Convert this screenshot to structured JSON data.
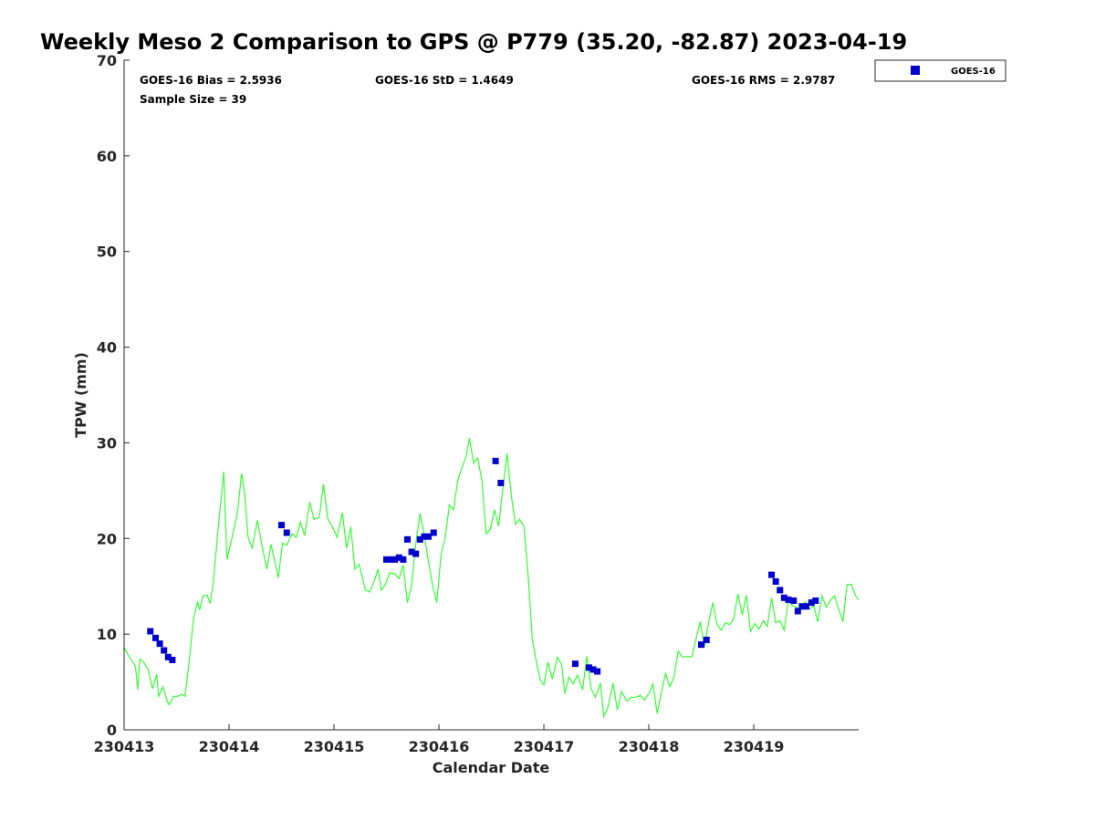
{
  "chart_data": {
    "type": "scatter",
    "title": "Weekly Meso 2 Comparison to GPS @ P779 (35.20, -82.87) 2023-04-19",
    "xlabel": "Calendar Date",
    "ylabel": "TPW (mm)",
    "xlim": [
      0,
      7
    ],
    "ylim": [
      0,
      70
    ],
    "x_ticks": [
      {
        "value": 0,
        "label": "230413"
      },
      {
        "value": 1,
        "label": "230414"
      },
      {
        "value": 2,
        "label": "230415"
      },
      {
        "value": 3,
        "label": "230416"
      },
      {
        "value": 4,
        "label": "230417"
      },
      {
        "value": 5,
        "label": "230418"
      },
      {
        "value": 6,
        "label": "230419"
      }
    ],
    "y_ticks": [
      0,
      10,
      20,
      30,
      40,
      50,
      60,
      70
    ],
    "stats": {
      "bias": "GOES-16 Bias = 2.5936",
      "std": "GOES-16 StD = 1.4649",
      "rms": "GOES-16 RMS = 2.9787",
      "sample_size": "Sample Size = 39"
    },
    "legend_position": "top-right, outside plot",
    "series": [
      {
        "name": "GOES-16",
        "kind": "scatter",
        "color": "#0000cc",
        "marker": "square",
        "points": [
          [
            0.25,
            10.3
          ],
          [
            0.3,
            9.6
          ],
          [
            0.34,
            9.0
          ],
          [
            0.38,
            8.3
          ],
          [
            0.42,
            7.6
          ],
          [
            0.46,
            7.3
          ],
          [
            1.5,
            21.4
          ],
          [
            1.55,
            20.6
          ],
          [
            2.5,
            17.8
          ],
          [
            2.54,
            17.8
          ],
          [
            2.58,
            17.8
          ],
          [
            2.62,
            18.0
          ],
          [
            2.66,
            17.8
          ],
          [
            2.7,
            19.9
          ],
          [
            2.74,
            18.6
          ],
          [
            2.78,
            18.4
          ],
          [
            2.82,
            19.9
          ],
          [
            2.86,
            20.2
          ],
          [
            2.9,
            20.2
          ],
          [
            2.95,
            20.6
          ],
          [
            3.54,
            28.1
          ],
          [
            3.59,
            25.8
          ],
          [
            4.3,
            6.9
          ],
          [
            4.43,
            6.5
          ],
          [
            4.47,
            6.3
          ],
          [
            4.51,
            6.1
          ],
          [
            5.5,
            8.9
          ],
          [
            5.55,
            9.4
          ],
          [
            6.17,
            16.2
          ],
          [
            6.21,
            15.5
          ],
          [
            6.25,
            14.6
          ],
          [
            6.29,
            13.8
          ],
          [
            6.33,
            13.6
          ],
          [
            6.38,
            13.5
          ],
          [
            6.42,
            12.4
          ],
          [
            6.46,
            12.9
          ],
          [
            6.5,
            12.9
          ],
          [
            6.55,
            13.3
          ],
          [
            6.59,
            13.5
          ]
        ]
      },
      {
        "name": "",
        "kind": "line",
        "color": "#33ff33",
        "points": [
          [
            0.0,
            8.6
          ],
          [
            0.05,
            7.6
          ],
          [
            0.1,
            6.8
          ],
          [
            0.11,
            6.4
          ],
          [
            0.13,
            4.2
          ],
          [
            0.15,
            7.4
          ],
          [
            0.19,
            7.0
          ],
          [
            0.23,
            6.3
          ],
          [
            0.27,
            4.3
          ],
          [
            0.31,
            5.8
          ],
          [
            0.33,
            3.5
          ],
          [
            0.37,
            4.5
          ],
          [
            0.41,
            3.0
          ],
          [
            0.43,
            2.6
          ],
          [
            0.47,
            3.5
          ],
          [
            0.51,
            3.5
          ],
          [
            0.55,
            3.7
          ],
          [
            0.58,
            3.5
          ],
          [
            0.62,
            7.1
          ],
          [
            0.66,
            11.5
          ],
          [
            0.7,
            13.4
          ],
          [
            0.72,
            12.5
          ],
          [
            0.75,
            14.0
          ],
          [
            0.79,
            14.1
          ],
          [
            0.82,
            13.2
          ],
          [
            0.85,
            15.4
          ],
          [
            0.9,
            21.5
          ],
          [
            0.95,
            27.0
          ],
          [
            0.98,
            17.8
          ],
          [
            1.03,
            20.2
          ],
          [
            1.08,
            22.7
          ],
          [
            1.12,
            26.8
          ],
          [
            1.15,
            24.6
          ],
          [
            1.18,
            20.2
          ],
          [
            1.22,
            19.0
          ],
          [
            1.27,
            21.9
          ],
          [
            1.31,
            19.5
          ],
          [
            1.36,
            16.8
          ],
          [
            1.4,
            19.4
          ],
          [
            1.44,
            17.4
          ],
          [
            1.47,
            15.9
          ],
          [
            1.51,
            19.5
          ],
          [
            1.55,
            19.3
          ],
          [
            1.6,
            20.5
          ],
          [
            1.64,
            20.1
          ],
          [
            1.68,
            21.7
          ],
          [
            1.72,
            20.3
          ],
          [
            1.77,
            23.8
          ],
          [
            1.81,
            22.0
          ],
          [
            1.86,
            22.2
          ],
          [
            1.9,
            25.7
          ],
          [
            1.94,
            22.1
          ],
          [
            1.99,
            21.1
          ],
          [
            2.03,
            20.1
          ],
          [
            2.08,
            22.7
          ],
          [
            2.12,
            19.0
          ],
          [
            2.16,
            21.2
          ],
          [
            2.2,
            16.8
          ],
          [
            2.24,
            17.3
          ],
          [
            2.3,
            14.6
          ],
          [
            2.34,
            14.4
          ],
          [
            2.38,
            15.4
          ],
          [
            2.42,
            16.8
          ],
          [
            2.45,
            14.6
          ],
          [
            2.49,
            15.2
          ],
          [
            2.53,
            16.4
          ],
          [
            2.58,
            16.3
          ],
          [
            2.62,
            15.8
          ],
          [
            2.66,
            17.2
          ],
          [
            2.7,
            13.3
          ],
          [
            2.74,
            15.1
          ],
          [
            2.78,
            19.5
          ],
          [
            2.82,
            22.6
          ],
          [
            2.86,
            20.4
          ],
          [
            2.9,
            17.6
          ],
          [
            2.94,
            15.1
          ],
          [
            2.98,
            13.3
          ],
          [
            3.02,
            18.3
          ],
          [
            3.06,
            20.1
          ],
          [
            3.1,
            23.5
          ],
          [
            3.14,
            23.0
          ],
          [
            3.18,
            26.1
          ],
          [
            3.22,
            27.4
          ],
          [
            3.26,
            28.6
          ],
          [
            3.29,
            30.5
          ],
          [
            3.33,
            27.9
          ],
          [
            3.37,
            28.4
          ],
          [
            3.41,
            26.0
          ],
          [
            3.45,
            20.5
          ],
          [
            3.49,
            21.0
          ],
          [
            3.53,
            23.0
          ],
          [
            3.57,
            21.3
          ],
          [
            3.61,
            25.3
          ],
          [
            3.65,
            28.9
          ],
          [
            3.69,
            24.5
          ],
          [
            3.73,
            21.5
          ],
          [
            3.77,
            22.0
          ],
          [
            3.81,
            21.3
          ],
          [
            3.85,
            16.1
          ],
          [
            3.89,
            9.4
          ],
          [
            3.93,
            7.0
          ],
          [
            3.97,
            5.1
          ],
          [
            4.0,
            4.7
          ],
          [
            4.04,
            7.1
          ],
          [
            4.08,
            5.3
          ],
          [
            4.13,
            7.6
          ],
          [
            4.17,
            6.8
          ],
          [
            4.2,
            3.8
          ],
          [
            4.24,
            5.5
          ],
          [
            4.28,
            4.8
          ],
          [
            4.32,
            5.7
          ],
          [
            4.37,
            4.2
          ],
          [
            4.41,
            7.7
          ],
          [
            4.45,
            4.3
          ],
          [
            4.49,
            3.4
          ],
          [
            4.54,
            4.9
          ],
          [
            4.57,
            1.4
          ],
          [
            4.61,
            2.3
          ],
          [
            4.66,
            4.9
          ],
          [
            4.7,
            2.1
          ],
          [
            4.74,
            4.0
          ],
          [
            4.79,
            3.0
          ],
          [
            4.83,
            3.4
          ],
          [
            4.88,
            3.4
          ],
          [
            4.92,
            3.6
          ],
          [
            4.96,
            3.1
          ],
          [
            5.0,
            3.8
          ],
          [
            5.04,
            4.8
          ],
          [
            5.08,
            1.7
          ],
          [
            5.12,
            3.9
          ],
          [
            5.16,
            5.9
          ],
          [
            5.2,
            4.5
          ],
          [
            5.24,
            5.5
          ],
          [
            5.28,
            8.2
          ],
          [
            5.32,
            7.6
          ],
          [
            5.37,
            7.7
          ],
          [
            5.41,
            7.6
          ],
          [
            5.45,
            9.5
          ],
          [
            5.49,
            11.3
          ],
          [
            5.53,
            8.6
          ],
          [
            5.57,
            11.2
          ],
          [
            5.61,
            13.3
          ],
          [
            5.65,
            11.0
          ],
          [
            5.69,
            10.4
          ],
          [
            5.73,
            11.2
          ],
          [
            5.77,
            11.0
          ],
          [
            5.81,
            11.6
          ],
          [
            5.85,
            14.2
          ],
          [
            5.89,
            12.0
          ],
          [
            5.93,
            14.1
          ],
          [
            5.97,
            10.3
          ],
          [
            6.01,
            11.1
          ],
          [
            6.05,
            10.5
          ],
          [
            6.09,
            11.4
          ],
          [
            6.13,
            10.8
          ],
          [
            6.17,
            13.8
          ],
          [
            6.21,
            11.2
          ],
          [
            6.25,
            11.4
          ],
          [
            6.29,
            10.4
          ],
          [
            6.33,
            13.5
          ],
          [
            6.37,
            13.0
          ],
          [
            6.41,
            12.8
          ],
          [
            6.45,
            12.5
          ],
          [
            6.49,
            13.4
          ],
          [
            6.53,
            12.6
          ],
          [
            6.57,
            13.0
          ],
          [
            6.61,
            11.3
          ],
          [
            6.65,
            14.0
          ],
          [
            6.69,
            12.8
          ],
          [
            6.73,
            13.5
          ],
          [
            6.77,
            14.0
          ],
          [
            6.81,
            12.6
          ],
          [
            6.85,
            11.3
          ],
          [
            6.89,
            15.2
          ],
          [
            6.93,
            15.2
          ],
          [
            6.97,
            14.0
          ],
          [
            7.0,
            13.6
          ]
        ]
      }
    ]
  }
}
